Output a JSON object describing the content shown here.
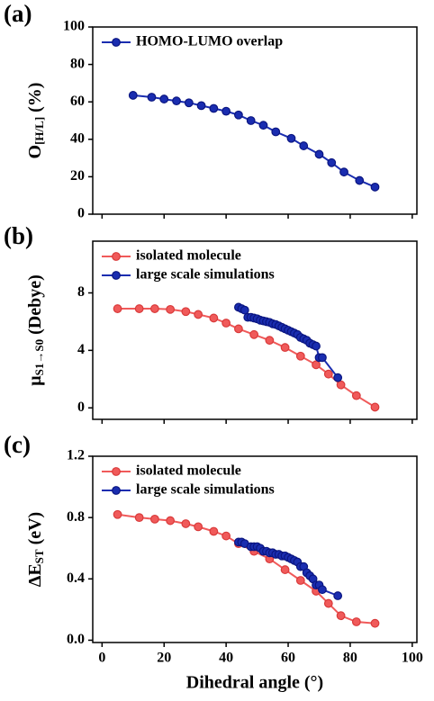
{
  "chart_data": [
    {
      "type": "line",
      "panel_label": "(a)",
      "ylabel": {
        "main": "O",
        "sub": "[H/L]",
        "unit": "(%)"
      },
      "xlim": [
        -3,
        101.5
      ],
      "ylim": [
        0,
        100
      ],
      "yticks": [
        0,
        20,
        40,
        60,
        80,
        100
      ],
      "legend": "upper left",
      "series": [
        {
          "name": "HOMO-LUMO overlap",
          "color": "#1a2db0",
          "x": [
            10,
            16,
            20,
            24,
            28,
            32,
            36,
            40,
            44,
            48,
            52,
            56,
            61,
            65,
            70,
            74,
            78,
            83,
            88
          ],
          "values": [
            63.5,
            62.5,
            61.5,
            60.5,
            59.5,
            58,
            56.5,
            55,
            53,
            50,
            47.5,
            44,
            40.5,
            36.5,
            32,
            27.5,
            22.5,
            18,
            14.5
          ]
        }
      ]
    },
    {
      "type": "line",
      "panel_label": "(b)",
      "ylabel": {
        "main": "μ",
        "sub": "S1→S0",
        "unit": "(Debye)"
      },
      "xlim": [
        -3,
        101.5
      ],
      "ylim": [
        -0.8,
        11.6
      ],
      "yticks": [
        0,
        4,
        8
      ],
      "legend": "upper left",
      "series": [
        {
          "name": "isolated molecule",
          "color": "#f05a5a",
          "x": [
            5,
            12,
            17,
            22,
            27,
            31,
            36,
            40,
            44,
            49,
            54,
            59,
            64,
            69,
            73,
            77,
            82,
            88
          ],
          "values": [
            6.9,
            6.9,
            6.9,
            6.85,
            6.7,
            6.5,
            6.25,
            5.9,
            5.5,
            5.1,
            4.7,
            4.2,
            3.6,
            3.0,
            2.35,
            1.6,
            0.85,
            0.05
          ]
        },
        {
          "name": "large scale simulations",
          "color": "#1a2db0",
          "x": [
            44,
            45,
            46,
            47,
            48,
            49,
            50,
            51,
            52,
            53,
            54,
            55,
            56,
            57,
            58,
            59,
            60,
            61,
            62,
            63,
            64,
            65,
            66,
            67,
            68,
            69,
            70,
            71,
            76
          ],
          "values": [
            7.0,
            6.9,
            6.8,
            6.3,
            6.3,
            6.25,
            6.2,
            6.1,
            6.05,
            6.0,
            5.95,
            5.85,
            5.8,
            5.7,
            5.6,
            5.5,
            5.4,
            5.3,
            5.2,
            5.1,
            4.9,
            4.8,
            4.7,
            4.5,
            4.4,
            4.3,
            3.5,
            3.5,
            2.1
          ]
        }
      ]
    },
    {
      "type": "line",
      "panel_label": "(c)",
      "ylabel": {
        "main": "ΔE",
        "sub": "ST",
        "unit": "(eV)"
      },
      "xlabel": "Dihedral angle (°)",
      "xlim": [
        -3,
        101.5
      ],
      "xticks": [
        0,
        20,
        40,
        60,
        80,
        100
      ],
      "ylim": [
        -0.015,
        1.2
      ],
      "yticks": [
        {
          "value": 0,
          "label": "0.0"
        },
        {
          "value": 0.4,
          "label": "0.4"
        },
        {
          "value": 0.8,
          "label": "0.8"
        },
        {
          "value": 1.2,
          "label": "1.2"
        }
      ],
      "legend": "upper left",
      "series": [
        {
          "name": "isolated molecule",
          "color": "#f05a5a",
          "x": [
            5,
            12,
            17,
            22,
            27,
            31,
            36,
            40,
            44,
            49,
            54,
            59,
            64,
            69,
            73,
            77,
            82,
            88
          ],
          "values": [
            0.82,
            0.8,
            0.79,
            0.78,
            0.76,
            0.74,
            0.71,
            0.68,
            0.63,
            0.58,
            0.53,
            0.46,
            0.39,
            0.32,
            0.24,
            0.16,
            0.12,
            0.11
          ]
        },
        {
          "name": "large scale simulations",
          "color": "#1a2db0",
          "x": [
            44,
            45,
            46,
            48,
            49,
            50,
            51,
            52,
            53,
            54,
            55,
            56,
            57,
            58,
            59,
            60,
            61,
            62,
            63,
            64,
            65,
            66,
            67,
            68,
            69,
            70,
            71,
            76
          ],
          "values": [
            0.64,
            0.64,
            0.63,
            0.61,
            0.61,
            0.61,
            0.6,
            0.58,
            0.58,
            0.57,
            0.57,
            0.56,
            0.56,
            0.55,
            0.55,
            0.54,
            0.53,
            0.52,
            0.51,
            0.48,
            0.48,
            0.44,
            0.42,
            0.4,
            0.36,
            0.36,
            0.33,
            0.29
          ]
        }
      ]
    }
  ]
}
